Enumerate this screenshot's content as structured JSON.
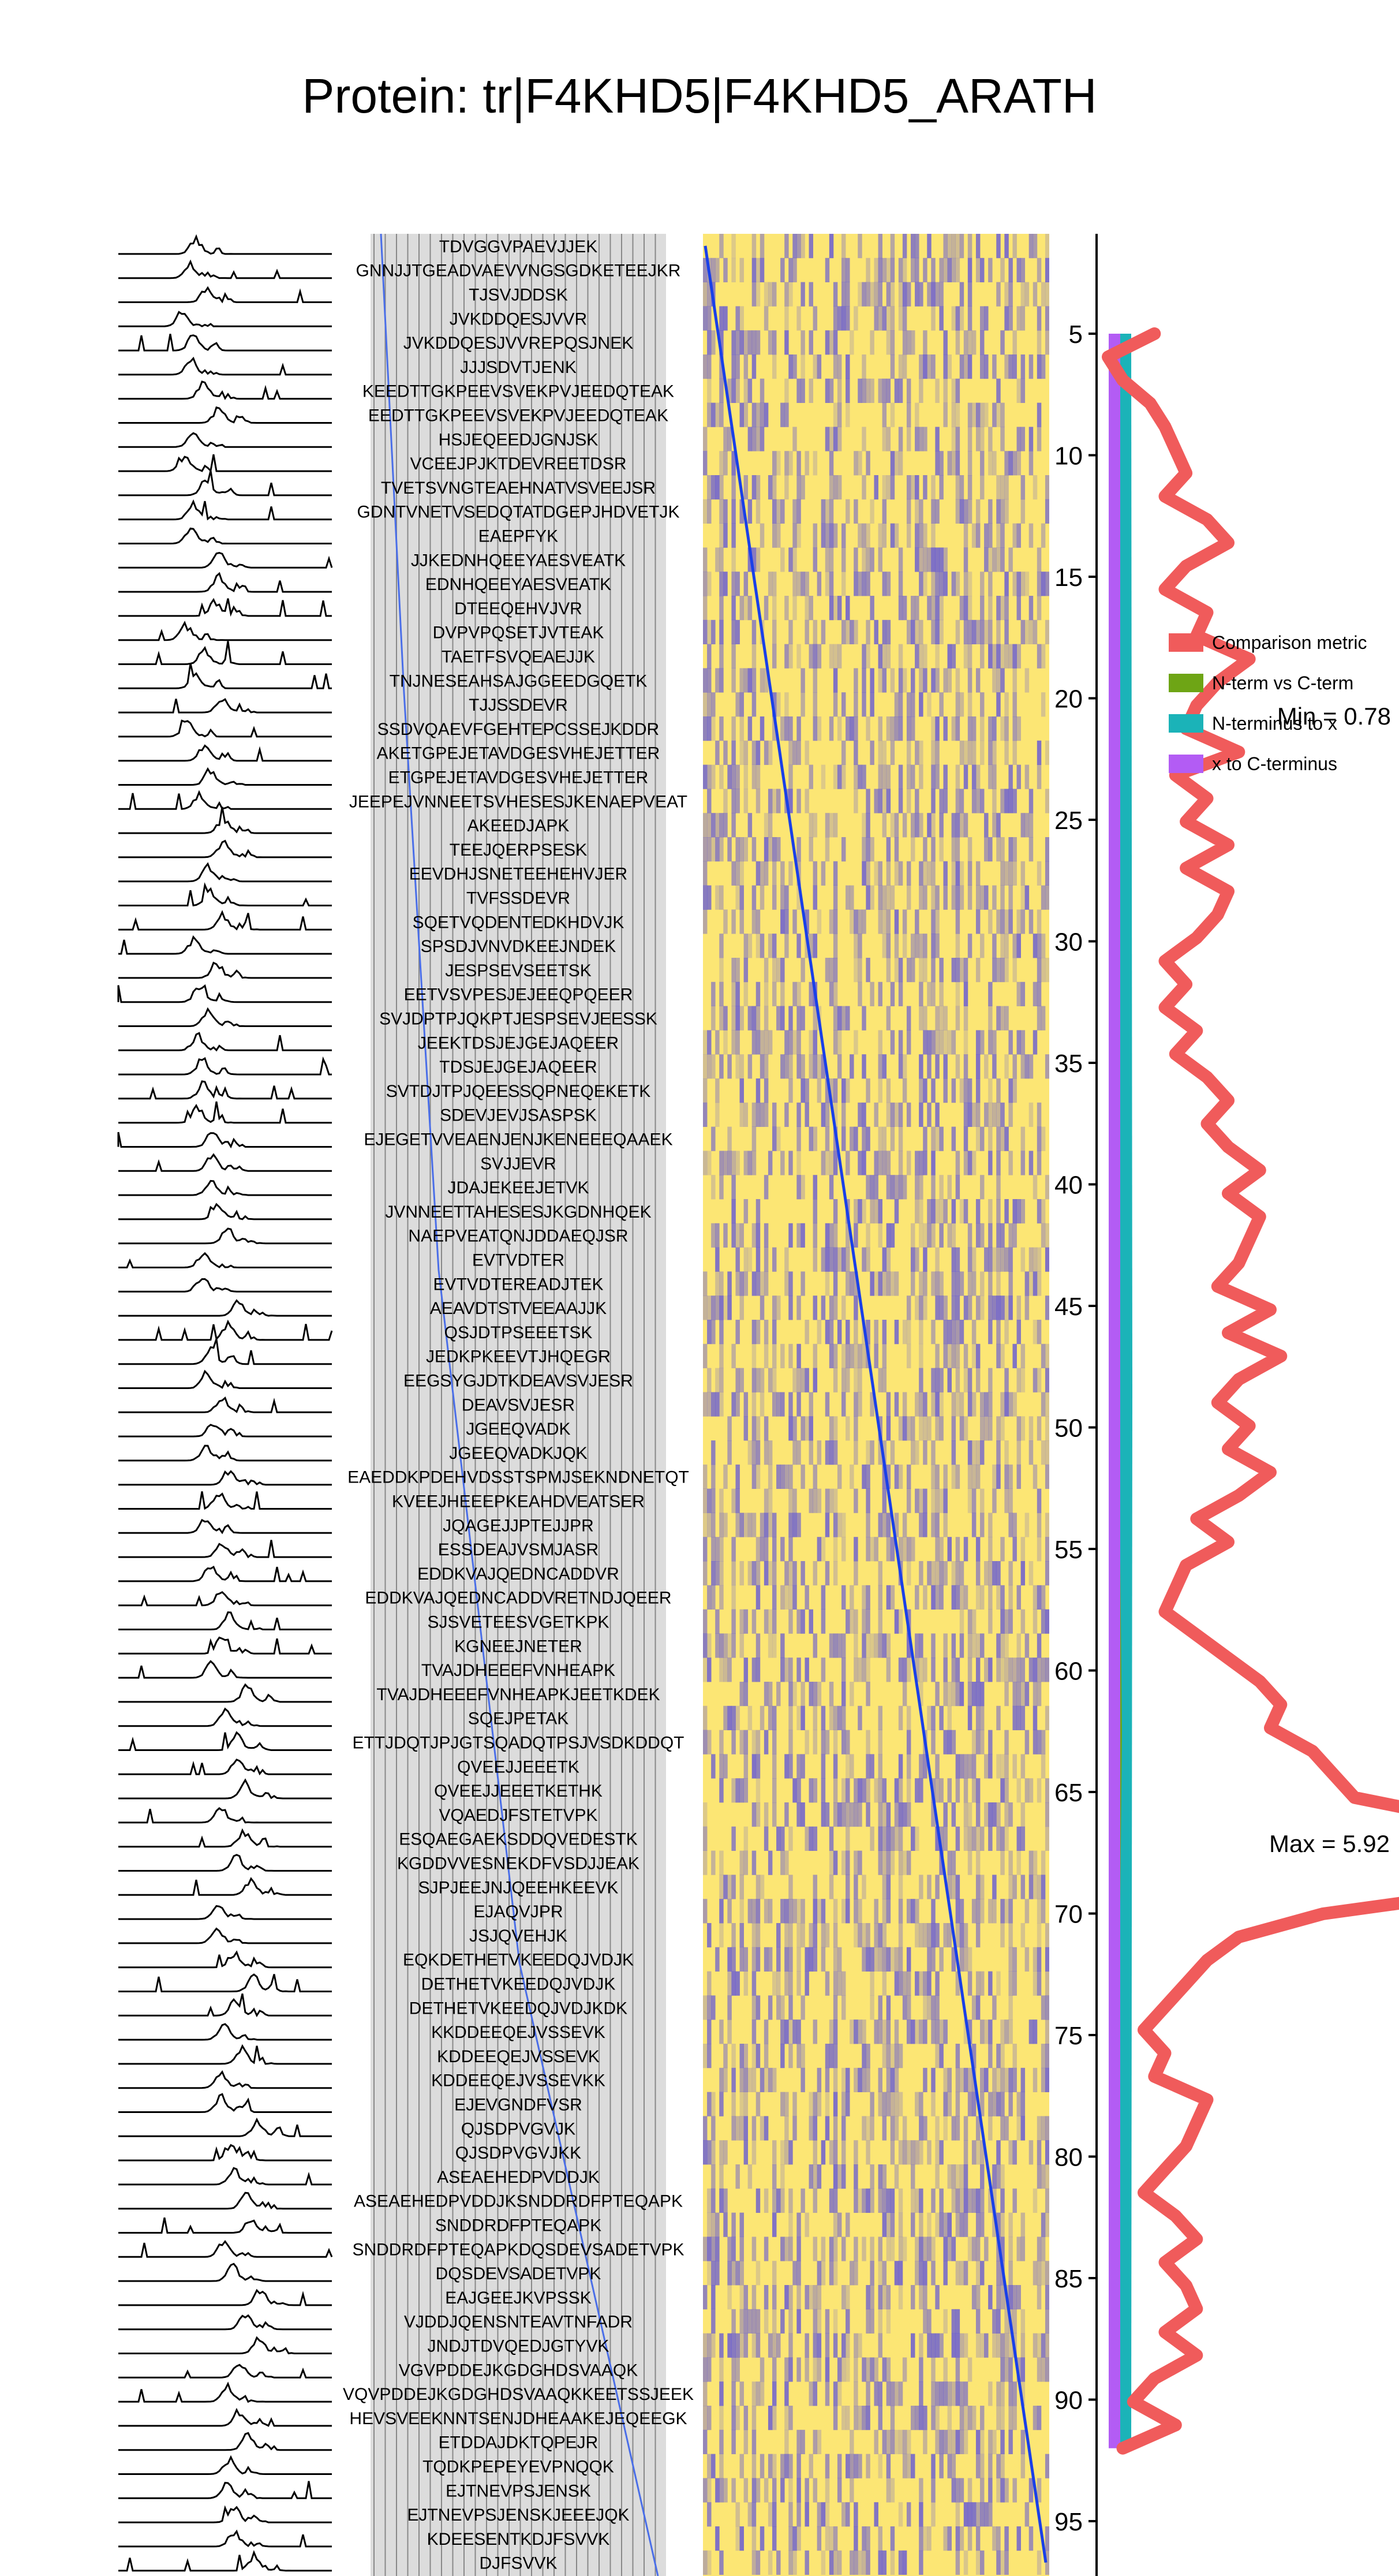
{
  "chart_data": {
    "type": "heatmap",
    "title": "Protein: tr|F4KHD5|F4KHD5_ARATH",
    "peptides": [
      "TDVGGVPAEVJJEK",
      "GNNJJTGEADVAEVVNGSGDKETEEJKR",
      "TJSVJDDSK",
      "JVKDDQESJVVR",
      "JVKDDQESJVVREPQSJNEK",
      "JJJSDVTJENK",
      "KEEDTTGKPEEVSVEKPVJEEDQTEAK",
      "EEDTTGKPEEVSVEKPVJEEDQTEAK",
      "HSJEQEEDJGNJSK",
      "VCEEJPJKTDEVREETDSR",
      "TVETSVNGTEAEHNATVSVEEJSR",
      "GDNTVNETVSEDQTATDGEPJHDVETJK",
      "EAEPFYK",
      "JJKEDNHQEEYAESVEATK",
      "EDNHQEEYAESVEATK",
      "DTEEQEHVJVR",
      "DVPVPQSETJVTEAK",
      "TAETFSVQEAEJJK",
      "TNJNESEAHSAJGGEEDGQETK",
      "TJJSSDEVR",
      "SSDVQAEVFGEHTEPCSSEJKDDR",
      "AKETGPEJETAVDGESVHEJETTER",
      "ETGPEJETAVDGESVHEJETTER",
      "JEEPEJVNNEETSVHESESJKENAEPVEAT",
      "AKEEDJAPK",
      "TEEJQERPSESK",
      "EEVDHJSNETEEHEHVJER",
      "TVFSSDEVR",
      "SQETVQDENTEDKHDVJK",
      "SPSDJVNVDKEEJNDEK",
      "JESPSEVSEETSK",
      "EETVSVPESJEJEEQPQEER",
      "SVJDPTPJQKPTJESPSEVJEESSK",
      "JEEKTDSJEJGEJAQEER",
      "TDSJEJGEJAQEER",
      "SVTDJTPJQEESSQPNEQEKETK",
      "SDEVJEVJSASPSK",
      "EJEGETVVEAENJENJKENEEEQAAEK",
      "SVJJEVR",
      "JDAJEKEEJETVK",
      "JVNNEETTAHESESJKGDNHQEK",
      "NAEPVEATQNJDDAEQJSR",
      "EVTVDTER",
      "EVTVDTEREADJTEK",
      "AEAVDTSTVEEAAJJK",
      "QSJDTPSEEETSK",
      "JEDKPKEEVTJHQEGR",
      "EEGSYGJDTKDEAVSVJESR",
      "DEAVSVJESR",
      "JGEEQVADK",
      "JGEEQVADKJQK",
      "EAEDDKPDEHVDSSTSPMJSEKNDNETQT",
      "KVEEJHEEEPKEAHDVEATSER",
      "JQAGEJJPTEJJPR",
      "ESSDEAJVSMJASR",
      "EDDKVAJQEDNCADDVR",
      "EDDKVAJQEDNCADDVRETNDJQEER",
      "SJSVETEESVGETKPK",
      "KGNEEJNETER",
      "TVAJDHEEEFVNHEAPK",
      "TVAJDHEEEFVNHEAPKJEETKDEK",
      "SQEJPETAK",
      "ETTJDQTJPJGTSQADQTPSJVSDKDDQT",
      "QVEEJJEEETK",
      "QVEEJJEEETKETHK",
      "VQAEDJFSTETVPK",
      "ESQAEGAEKSDDQVEDESTK",
      "KGDDVVESNEKDFVSDJJEAK",
      "SJPJEEJNJQEEHKEEVK",
      "EJAQVJPR",
      "JSJQVEHJK",
      "EQKDETHETVKEEDQJVDJK",
      "DETHETVKEEDQJVDJK",
      "DETHETVKEEDQJVDJKDK",
      "KKDDEEQEJVSSEVK",
      "KDDEEQEJVSSEVK",
      "KDDEEQEJVSSEVKK",
      "EJEVGNDFVSR",
      "QJSDPVGVJK",
      "QJSDPVGVJKK",
      "ASEAEHEDPVDDJK",
      "ASEAEHEDPVDDJKSNDDRDFPTEQAPK",
      "SNDDRDFPTEQAPK",
      "SNDDRDFPTEQAPKDQSDEVSADETVPK",
      "DQSDEVSADETVPK",
      "EAJGEEJKVPSSK",
      "VJDDJQENSNTEAVTNFADR",
      "JNDJTDVQEDJGTYVK",
      "VGVPDDEJKGDGHDSVAAQK",
      "VQVPDDEJKGDGHDSVAAQKKEETSSJEEK",
      "HEVSVEEKNNTSENJDHEAAKEJEQEEGK",
      "ETDDAJDKTQPEJR",
      "TQDKPEPEYEVPNQQK",
      "EJTNEVPSJENSK",
      "EJTNEVPSJENSKJEEEJQK",
      "KDEESENTKDJFSVVK",
      "DJFSVVK"
    ],
    "y_ticks": [
      5,
      10,
      15,
      20,
      25,
      30,
      35,
      40,
      45,
      50,
      55,
      60,
      65,
      70,
      75,
      80,
      85,
      90,
      95
    ],
    "metric_position": [
      5,
      92
    ],
    "comparison_metric": [
      5.0,
      4.78,
      4.85,
      4.98,
      5.05,
      5.1,
      5.15,
      5.05,
      5.25,
      5.35,
      5.15,
      5.05,
      5.25,
      5.2,
      5.45,
      5.3,
      5.2,
      5.15,
      5.4,
      5.1,
      5.25,
      5.15,
      5.35,
      5.15,
      5.35,
      5.3,
      5.2,
      5.05,
      5.15,
      5.05,
      5.2,
      5.1,
      5.25,
      5.35,
      5.25,
      5.35,
      5.5,
      5.35,
      5.5,
      5.45,
      5.4,
      5.3,
      5.55,
      5.35,
      5.6,
      5.4,
      5.3,
      5.45,
      5.35,
      5.55,
      5.4,
      5.2,
      5.35,
      5.15,
      5.1,
      5.05,
      5.2,
      5.35,
      5.5,
      5.6,
      5.55,
      5.75,
      5.85,
      5.95,
      6.5,
      7.0,
      7.28,
      6.6,
      5.8,
      5.4,
      5.25,
      5.15,
      5.05,
      4.95,
      5.05,
      5.0,
      5.25,
      5.2,
      5.15,
      5.05,
      4.95,
      5.1,
      5.2,
      5.05,
      5.15,
      5.2,
      5.05,
      5.2,
      5.0,
      4.9,
      5.1,
      4.85
    ],
    "metric_min_label": "Min = 0.78",
    "metric_max_label": "Max = 5.92",
    "legend": [
      {
        "label": "Comparison metric",
        "color": "#f05b5b"
      },
      {
        "label": "N-term vs C-term",
        "color": "#6ea515"
      },
      {
        "label": "N-terminus to x",
        "color": "#1bb3b8"
      },
      {
        "label": "x to C-terminus",
        "color": "#b35cf4"
      }
    ],
    "heat_colors": {
      "low": "#fce674",
      "high": "#5b50dc",
      "diagonal": "#1a40e8"
    },
    "grid": true,
    "legend_position": "right"
  }
}
